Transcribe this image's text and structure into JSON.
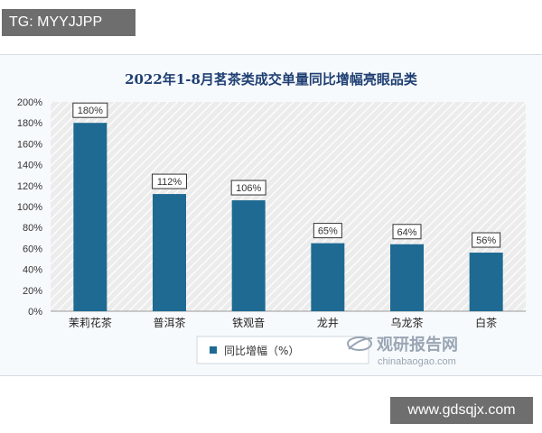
{
  "overlay": {
    "top_left_badge": "TG: MYYJJPP",
    "bottom_right_site": "www.gdsqjx.com"
  },
  "watermark": {
    "brand_cn": "观研报告网",
    "brand_en": "chinabaogao.com"
  },
  "colors": {
    "bar": "#1e6a93",
    "title": "#1f3f73",
    "plot_bg": "#ececec",
    "hatch": "#ffffff"
  },
  "chart_data": {
    "type": "bar",
    "title": "2022年1-8月茗茶类成交单量同比增幅亮眼品类",
    "categories": [
      "茉莉花茶",
      "普洱茶",
      "铁观音",
      "龙井",
      "乌龙茶",
      "白茶"
    ],
    "values": [
      180,
      112,
      106,
      65,
      64,
      56
    ],
    "data_labels": [
      "180%",
      "112%",
      "106%",
      "65%",
      "64%",
      "56%"
    ],
    "series": [
      {
        "name": "同比增幅（%）",
        "values": [
          180,
          112,
          106,
          65,
          64,
          56
        ]
      }
    ],
    "y_ticks": [
      "0%",
      "20%",
      "40%",
      "60%",
      "80%",
      "100%",
      "120%",
      "140%",
      "160%",
      "180%",
      "200%"
    ],
    "ylim": [
      0,
      200
    ],
    "xlabel": "",
    "ylabel": "",
    "legend_position": "bottom",
    "grid": false
  }
}
